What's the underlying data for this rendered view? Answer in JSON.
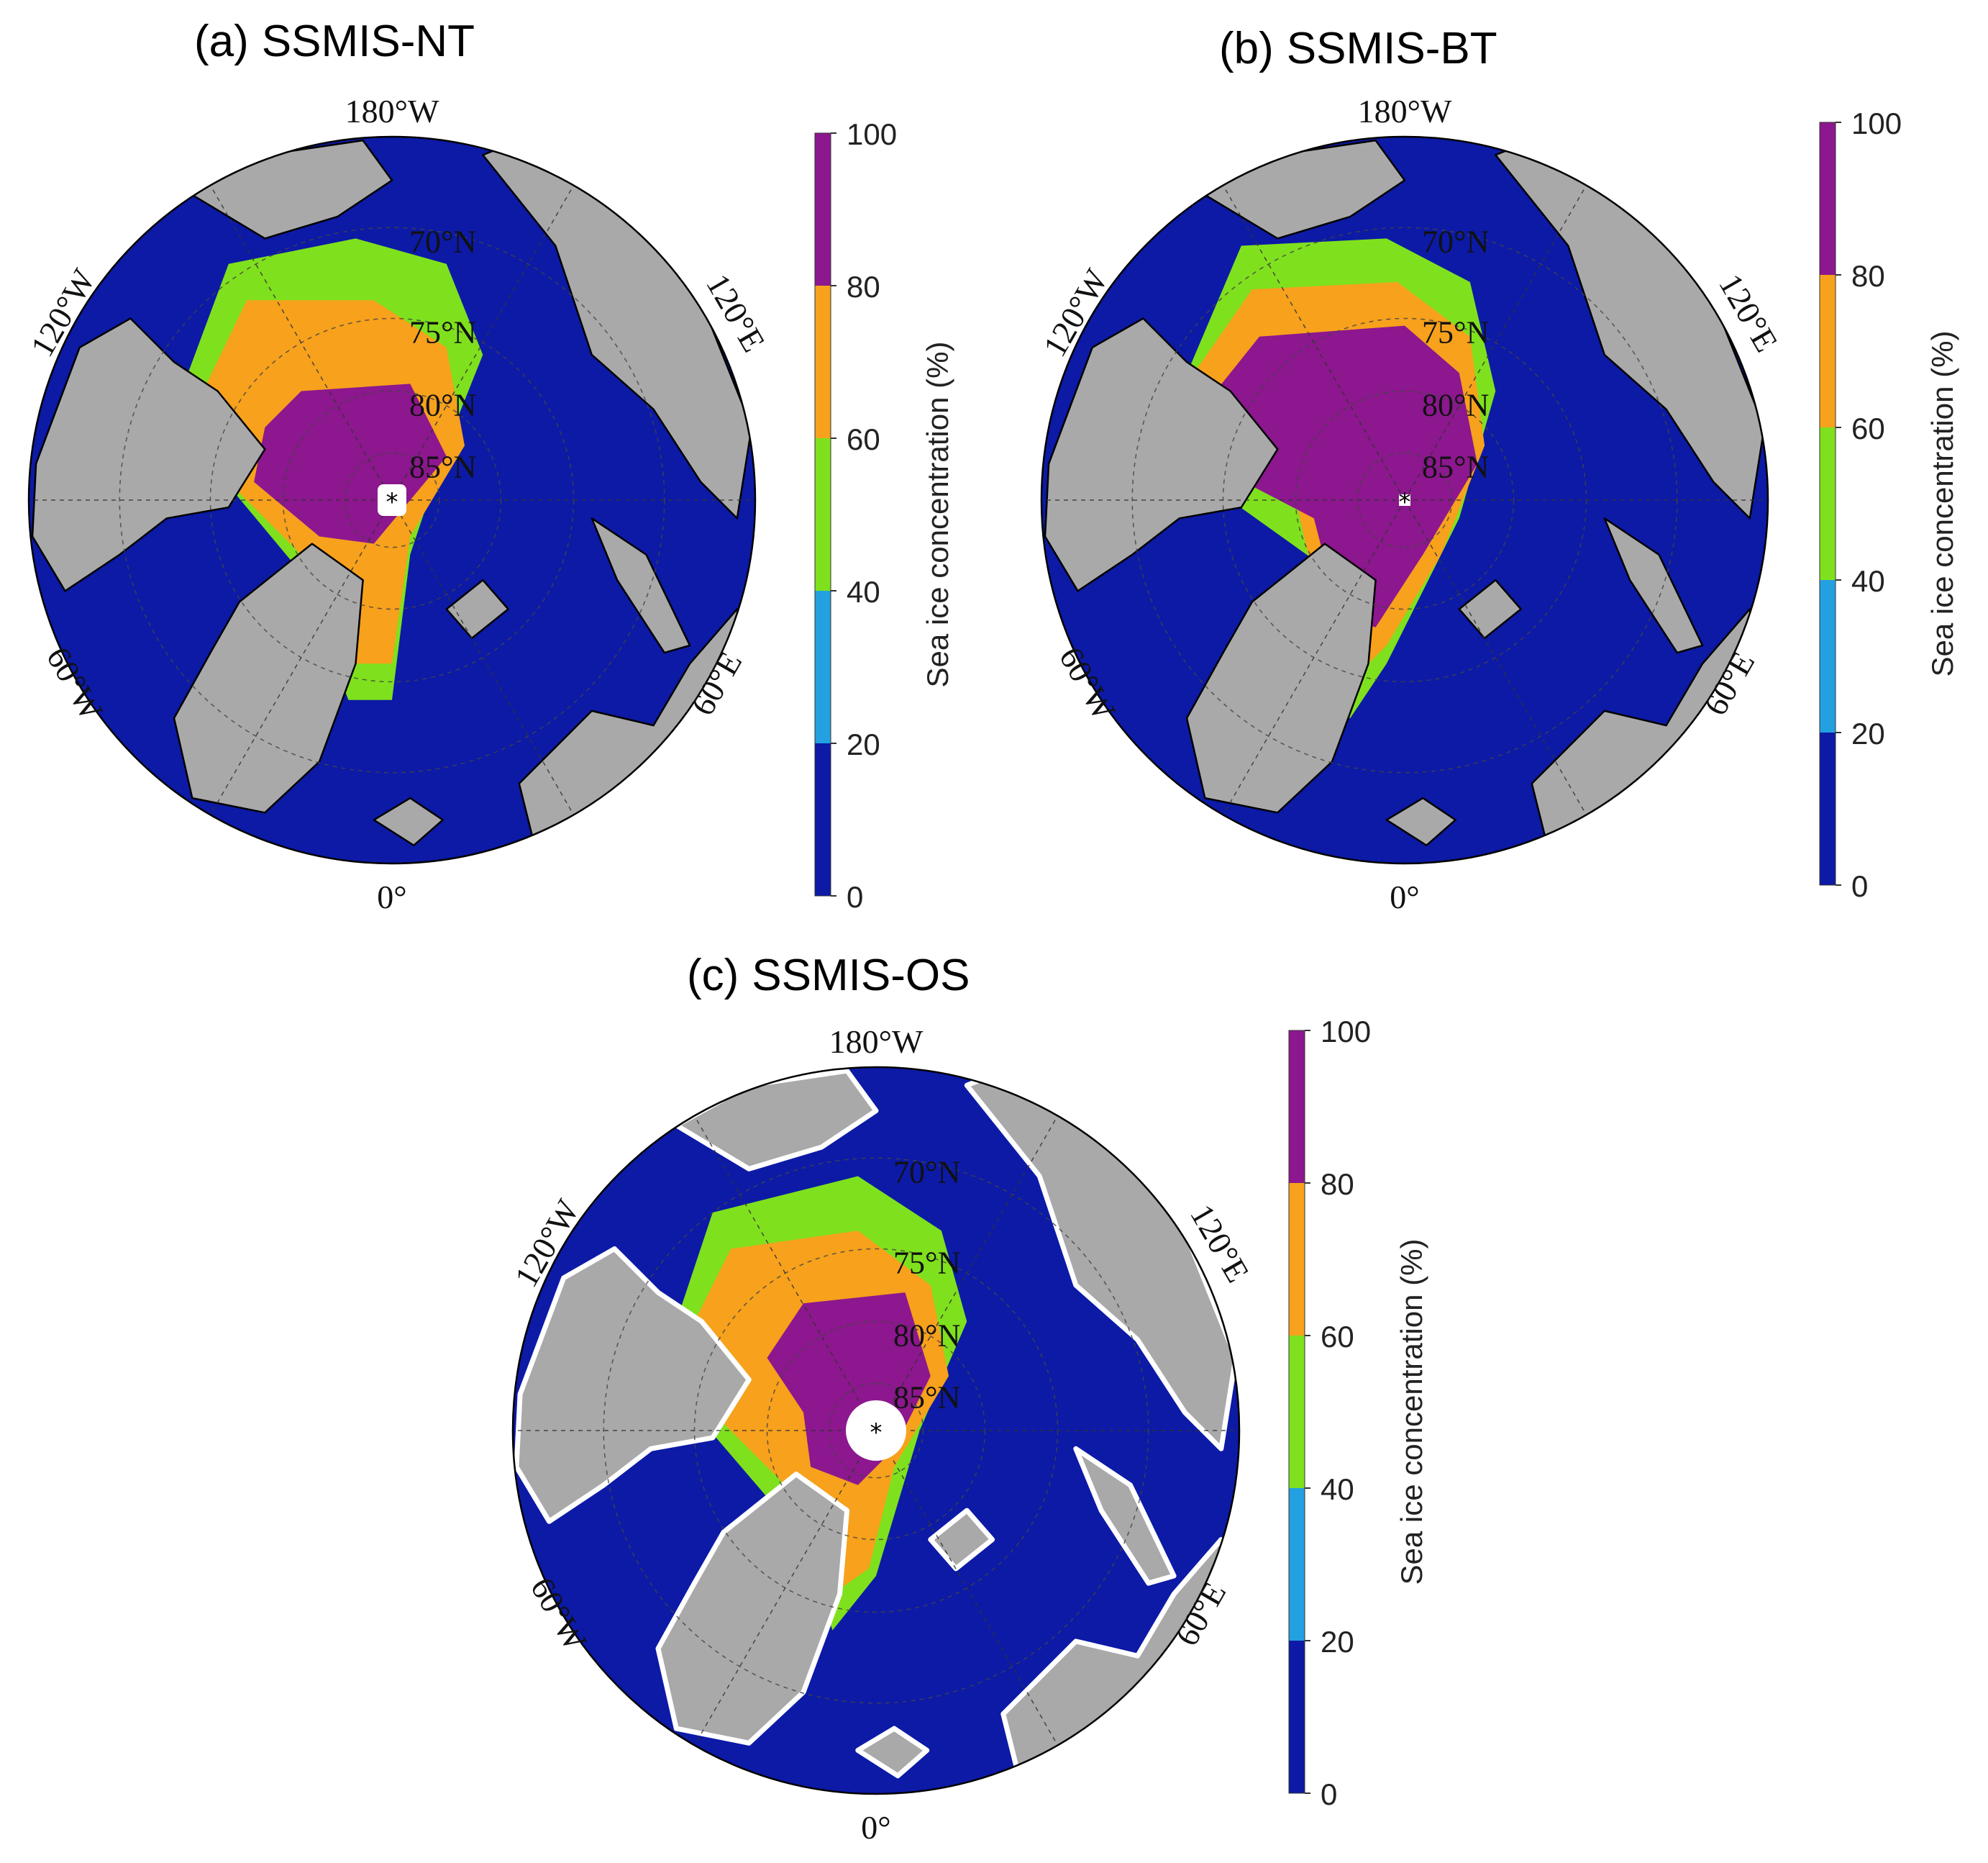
{
  "colorbar": {
    "ticks": [
      "0",
      "20",
      "40",
      "60",
      "80",
      "100"
    ],
    "label": "Sea ice concentration (%)",
    "classes": [
      {
        "from": 0,
        "to": 20,
        "color": "#0c1aa6"
      },
      {
        "from": 20,
        "to": 40,
        "color": "#23a0e0"
      },
      {
        "from": 40,
        "to": 60,
        "color": "#7fe11d"
      },
      {
        "from": 60,
        "to": 80,
        "color": "#f7a11c"
      },
      {
        "from": 80,
        "to": 100,
        "color": "#8c178e"
      }
    ]
  },
  "colors": {
    "land": "#a9a9a9",
    "ocean": "#0c1aa6",
    "pole_hole": "#ffffff",
    "coast_outline": "#000000",
    "os_coast_mask": "#ffffff"
  },
  "longitude_labels": {
    "top": "180°W",
    "bottom": "0°",
    "upper_left": "120°W",
    "upper_right": "120°E",
    "lower_left": "60°W",
    "lower_right": "60°E"
  },
  "latitude_labels": [
    "70°N",
    "75°N",
    "80°N",
    "85°N"
  ],
  "panels": [
    {
      "id": "a",
      "tag": "(a)",
      "title": "SSMIS-NT",
      "pole_hole": "small-square"
    },
    {
      "id": "b",
      "tag": "(b)",
      "title": "SSMIS-BT",
      "pole_hole": "tiny"
    },
    {
      "id": "c",
      "tag": "(c)",
      "title": "SSMIS-OS",
      "pole_hole": "large-circle"
    }
  ]
}
